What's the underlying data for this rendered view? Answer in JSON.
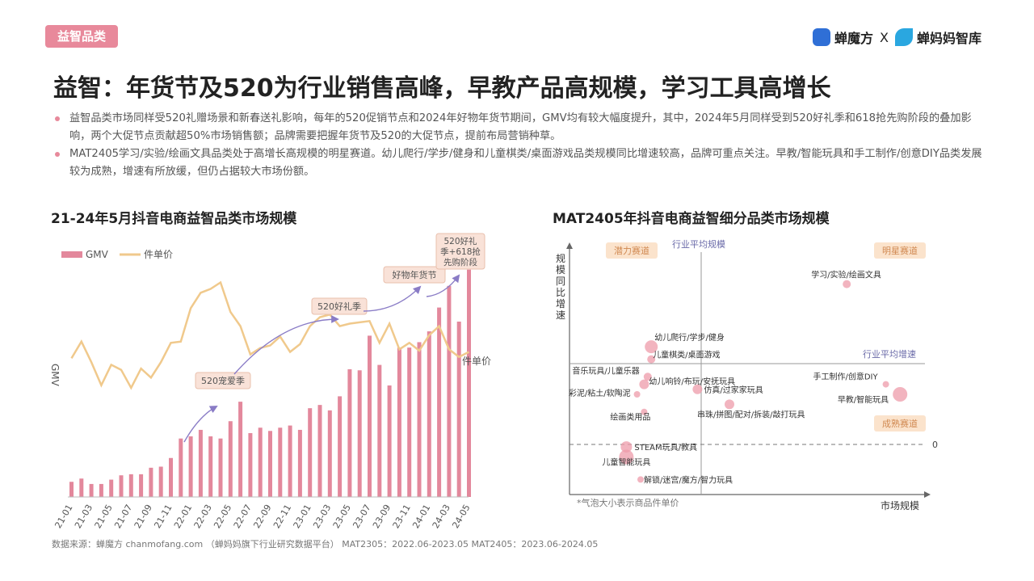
{
  "tag": "益智品类",
  "brand": {
    "logo_left": "蝉魔方",
    "separator": "X",
    "logo_right": "蝉妈妈智库",
    "logo_left_icon": "chanmofang-logo-icon",
    "logo_right_icon": "chanmama-logo-icon",
    "accent": "#e8899b",
    "line_color": "#f0c98c"
  },
  "title": "益智：年货节及520为行业销售高峰，早教产品高规模，学习工具高增长",
  "bullets": [
    "益智品类市场同样受520礼赠场景和新春送礼影响，每年的520促销节点和2024年好物年货节期间，GMV均有较大幅度提升，其中，2024年5月同样受到520好礼季和618抢先购阶段的叠加影响，两个大促节点贡献超50%市场销售额；品牌需要把握年货节及520的大促节点，提前布局营销种草。",
    "MAT2405学习/实验/绘画文具品类处于高增长高规模的明星赛道。幼儿爬行/学步/健身和儿童棋类/桌面游戏品类规模同比增速较高，品牌可重点关注。早教/智能玩具和手工制作/创意DIY品类发展较为成熟，增速有所放缓，但仍占据较大市场份额。"
  ],
  "chart_data": [
    {
      "type": "bar",
      "title": "21-24年5月抖音电商益智品类市场规模",
      "legend": [
        "GMV",
        "件单价"
      ],
      "ylabel_left": "GMV",
      "ylabel_right": "件单价",
      "categories": [
        "21-01",
        "21-02",
        "21-03",
        "21-04",
        "21-05",
        "21-06",
        "21-07",
        "21-08",
        "21-09",
        "21-10",
        "21-11",
        "21-12",
        "22-01",
        "22-02",
        "22-03",
        "22-04",
        "22-05",
        "22-06",
        "22-07",
        "22-08",
        "22-09",
        "22-10",
        "22-11",
        "22-12",
        "23-01",
        "23-02",
        "23-03",
        "23-04",
        "23-05",
        "23-06",
        "23-07",
        "23-08",
        "23-09",
        "23-10",
        "23-11",
        "23-12",
        "24-01",
        "24-02",
        "24-03",
        "24-04",
        "24-05"
      ],
      "tick_labels": [
        "21-01",
        "21-03",
        "21-05",
        "21-07",
        "21-09",
        "21-11",
        "22-01",
        "22-03",
        "22-05",
        "22-07",
        "22-09",
        "22-11",
        "23-01",
        "23-03",
        "23-05",
        "23-07",
        "23-09",
        "23-11",
        "24-01",
        "24-03",
        "24-05"
      ],
      "series": [
        {
          "name": "GMV",
          "type": "bar",
          "values": [
            14,
            17,
            12,
            12,
            16,
            20,
            21,
            21,
            27,
            28,
            36,
            54,
            56,
            62,
            56,
            54,
            70,
            88,
            59,
            64,
            61,
            64,
            66,
            62,
            82,
            85,
            80,
            93,
            118,
            117,
            149,
            122,
            103,
            138,
            138,
            143,
            153,
            175,
            195,
            162,
            210
          ]
        },
        {
          "name": "件单价",
          "type": "line",
          "values": [
            45,
            58,
            42,
            24,
            40,
            36,
            22,
            37,
            30,
            42,
            57,
            58,
            84,
            96,
            99,
            104,
            81,
            70,
            48,
            53,
            55,
            62,
            50,
            56,
            70,
            77,
            79,
            70,
            72,
            73,
            74,
            57,
            72,
            52,
            57,
            51,
            63,
            70,
            52,
            46,
            50
          ]
        }
      ],
      "ylim": [
        0,
        215
      ],
      "annotations": [
        "520宠爱季",
        "520好礼季",
        "好物年货节",
        "520好礼季+618抢先购阶段"
      ]
    },
    {
      "type": "scatter",
      "title": "MAT2405年抖音电商益智细分品类市场规模",
      "xlabel": "市场规模",
      "ylabel": "规模同比增速",
      "reference_lines": {
        "x_label": "行业平均规模",
        "y_label": "行业平均增速",
        "zero_label": "0"
      },
      "quadrants": [
        "潜力赛道",
        "明星赛道",
        "成熟赛道"
      ],
      "note": "*气泡大小表示商品件单价",
      "points": [
        {
          "label": "学习/实验/绘画文具",
          "x": 0.78,
          "y": 0.84
        },
        {
          "label": "幼儿爬行/学步/健身",
          "x": 0.23,
          "y": 0.59
        },
        {
          "label": "儿童棋类/桌面游戏",
          "x": 0.23,
          "y": 0.54
        },
        {
          "label": "音乐玩具/儿童乐器",
          "x": 0.22,
          "y": 0.47
        },
        {
          "label": "幼儿响铃/布玩/安抚玩具",
          "x": 0.21,
          "y": 0.44
        },
        {
          "label": "手工制作/创意DIY",
          "x": 0.89,
          "y": 0.44
        },
        {
          "label": "仿真/过家家玩具",
          "x": 0.36,
          "y": 0.42
        },
        {
          "label": "早教/智能玩具",
          "x": 0.93,
          "y": 0.4
        },
        {
          "label": "彩泥/粘土/软陶泥",
          "x": 0.19,
          "y": 0.4
        },
        {
          "label": "串珠/拼图/配对/拆装/敲打玩具",
          "x": 0.45,
          "y": 0.36
        },
        {
          "label": "绘画类用品",
          "x": 0.21,
          "y": 0.33
        },
        {
          "label": "STEAM玩具/教具",
          "x": 0.16,
          "y": 0.19
        },
        {
          "label": "儿童智能玩具",
          "x": 0.16,
          "y": 0.15
        },
        {
          "label": "解锁/迷宫/魔方/智力玩具",
          "x": 0.2,
          "y": 0.06
        }
      ]
    }
  ],
  "source": "数据来源：蝉魔方 chanmofang.com （蝉妈妈旗下行业研究数据平台） MAT2305：2022.06-2023.05 MAT2405：2023.06-2024.05"
}
